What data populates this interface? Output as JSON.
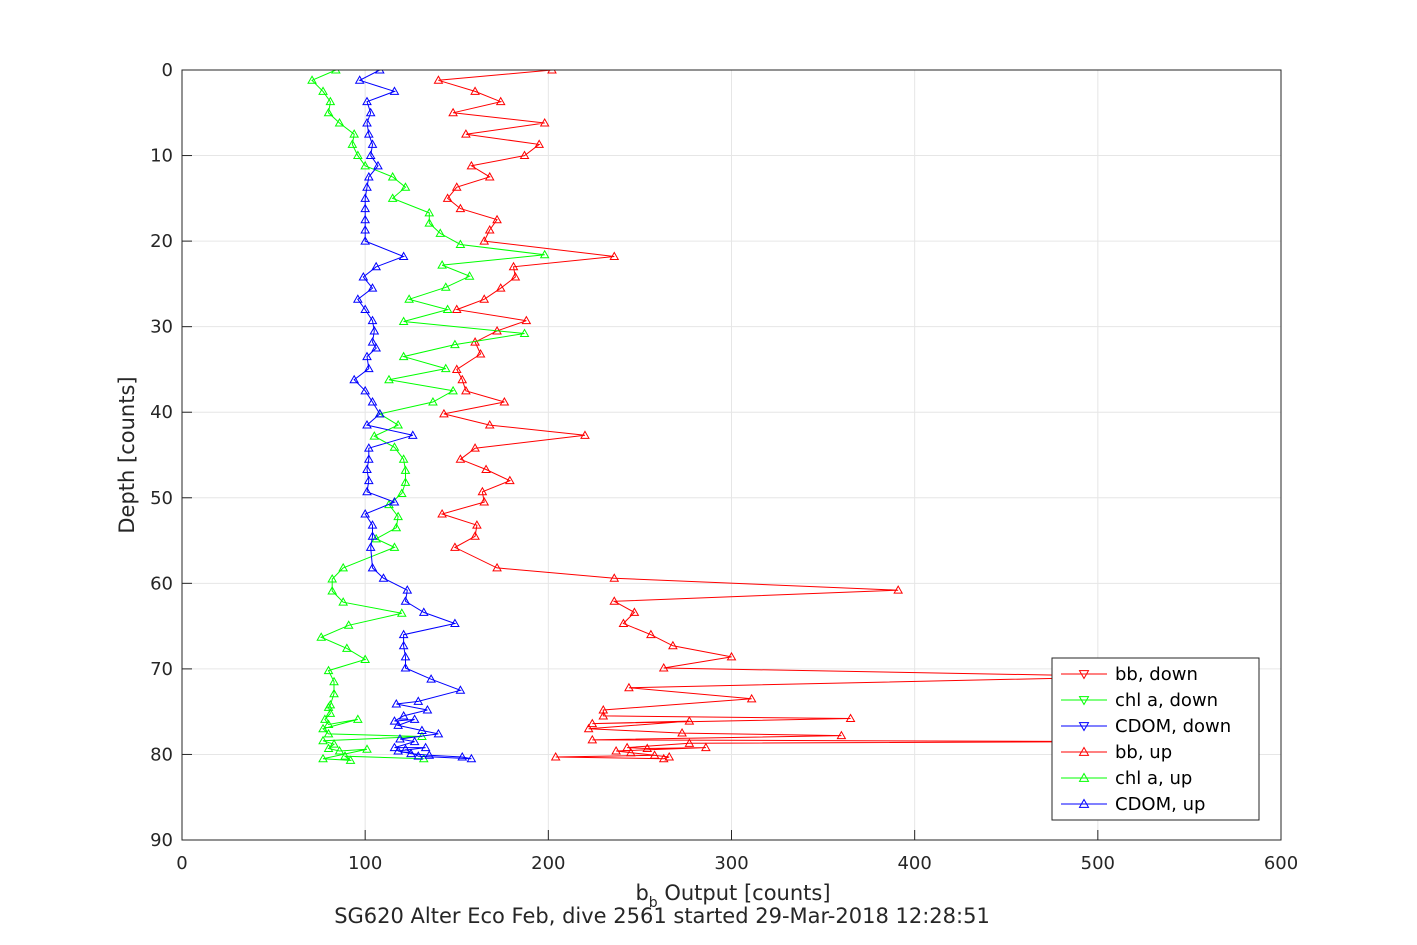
{
  "chart_data": {
    "type": "line",
    "title": "SG620 Alter Eco Feb, dive 2561 started 29-Mar-2018 12:28:51",
    "xlabel_main": "b",
    "xlabel_sub": "b",
    "xlabel_rest": " Output [counts]",
    "ylabel": "Depth [counts]",
    "xlim": [
      0,
      600
    ],
    "ylim": [
      90,
      0
    ],
    "y_reversed": true,
    "grid": true,
    "x_ticks": [
      "0",
      "100",
      "200",
      "300",
      "400",
      "500",
      "600"
    ],
    "x_tick_values": [
      0,
      100,
      200,
      300,
      400,
      500,
      600
    ],
    "y_ticks": [
      "0",
      "10",
      "20",
      "30",
      "40",
      "50",
      "60",
      "70",
      "80",
      "90"
    ],
    "y_tick_values": [
      0,
      10,
      20,
      30,
      40,
      50,
      60,
      70,
      80,
      90
    ],
    "legend_position": "bottom-right",
    "series": [
      {
        "name": "bb, down",
        "color": "#ff0000",
        "marker": "triangle-down",
        "points": []
      },
      {
        "name": "chl a, down",
        "color": "#00ff00",
        "marker": "triangle-down",
        "points": []
      },
      {
        "name": "CDOM, down",
        "color": "#0000ff",
        "marker": "triangle-down",
        "points": []
      },
      {
        "name": "bb, up",
        "color": "#ff0000",
        "marker": "triangle-up",
        "points": [
          [
            202,
            0
          ],
          [
            140,
            1.2
          ],
          [
            160,
            2.5
          ],
          [
            174,
            3.7
          ],
          [
            148,
            5
          ],
          [
            198,
            6.2
          ],
          [
            155,
            7.5
          ],
          [
            195,
            8.7
          ],
          [
            187,
            10
          ],
          [
            158,
            11.2
          ],
          [
            168,
            12.5
          ],
          [
            150,
            13.7
          ],
          [
            145,
            15
          ],
          [
            152,
            16.2
          ],
          [
            172,
            17.5
          ],
          [
            168,
            18.7
          ],
          [
            165,
            20
          ],
          [
            236,
            21.8
          ],
          [
            181,
            23
          ],
          [
            182,
            24.2
          ],
          [
            174,
            25.5
          ],
          [
            165,
            26.8
          ],
          [
            150,
            28
          ],
          [
            188,
            29.3
          ],
          [
            172,
            30.5
          ],
          [
            160,
            31.8
          ],
          [
            163,
            33.2
          ],
          [
            150,
            35
          ],
          [
            153,
            36.2
          ],
          [
            155,
            37.5
          ],
          [
            176,
            38.8
          ],
          [
            143,
            40.2
          ],
          [
            168,
            41.5
          ],
          [
            220,
            42.7
          ],
          [
            160,
            44.2
          ],
          [
            152,
            45.5
          ],
          [
            166,
            46.7
          ],
          [
            179,
            48
          ],
          [
            164,
            49.3
          ],
          [
            165,
            50.5
          ],
          [
            142,
            51.9
          ],
          [
            161,
            53.2
          ],
          [
            160,
            54.5
          ],
          [
            149,
            55.8
          ],
          [
            172,
            58.2
          ],
          [
            236,
            59.4
          ],
          [
            391,
            60.8
          ],
          [
            236,
            62.1
          ],
          [
            247,
            63.4
          ],
          [
            241,
            64.7
          ],
          [
            256,
            66
          ],
          [
            268,
            67.3
          ],
          [
            300,
            68.6
          ],
          [
            263,
            69.9
          ],
          [
            520,
            70.9
          ],
          [
            244,
            72.2
          ],
          [
            311,
            73.5
          ],
          [
            230,
            74.8
          ],
          [
            230,
            75.5
          ],
          [
            365,
            75.8
          ],
          [
            224,
            76.4
          ],
          [
            277,
            76.1
          ],
          [
            222,
            77
          ],
          [
            273,
            77.5
          ],
          [
            360,
            77.8
          ],
          [
            224,
            78.3
          ],
          [
            520,
            78.5
          ],
          [
            277,
            78.7
          ],
          [
            243,
            79.2
          ],
          [
            254,
            79.3
          ],
          [
            286,
            79.2
          ],
          [
            237,
            79.6
          ],
          [
            258,
            80.1
          ],
          [
            204,
            80.3
          ],
          [
            263,
            80.5
          ],
          [
            266,
            80.3
          ],
          [
            245,
            79.8
          ]
        ]
      },
      {
        "name": "chl a, up",
        "color": "#00ff00",
        "marker": "triangle-up",
        "points": [
          [
            84,
            0
          ],
          [
            71,
            1.2
          ],
          [
            77,
            2.5
          ],
          [
            81,
            3.7
          ],
          [
            80,
            5
          ],
          [
            86,
            6.2
          ],
          [
            94,
            7.5
          ],
          [
            93,
            8.7
          ],
          [
            96,
            10
          ],
          [
            100,
            11.2
          ],
          [
            115,
            12.5
          ],
          [
            122,
            13.7
          ],
          [
            115,
            15
          ],
          [
            135,
            16.7
          ],
          [
            135,
            17.9
          ],
          [
            141,
            19.1
          ],
          [
            152,
            20.4
          ],
          [
            198,
            21.6
          ],
          [
            142,
            22.8
          ],
          [
            157,
            24.1
          ],
          [
            144,
            25.4
          ],
          [
            124,
            26.8
          ],
          [
            145,
            28
          ],
          [
            121,
            29.4
          ],
          [
            187,
            30.8
          ],
          [
            149,
            32.1
          ],
          [
            121,
            33.5
          ],
          [
            144,
            34.9
          ],
          [
            113,
            36.2
          ],
          [
            148,
            37.5
          ],
          [
            137,
            38.8
          ],
          [
            108,
            40.2
          ],
          [
            118,
            41.5
          ],
          [
            105,
            42.8
          ],
          [
            116,
            44.1
          ],
          [
            121,
            45.5
          ],
          [
            122,
            46.8
          ],
          [
            122,
            48.2
          ],
          [
            120,
            49.5
          ],
          [
            113,
            50.8
          ],
          [
            118,
            52.2
          ],
          [
            117,
            53.5
          ],
          [
            106,
            54.8
          ],
          [
            116,
            55.8
          ],
          [
            88,
            58.2
          ],
          [
            82,
            59.5
          ],
          [
            82,
            60.9
          ],
          [
            88,
            62.2
          ],
          [
            120,
            63.5
          ],
          [
            91,
            64.9
          ],
          [
            76,
            66.3
          ],
          [
            90,
            67.6
          ],
          [
            100,
            68.9
          ],
          [
            80,
            70.2
          ],
          [
            83,
            71.5
          ],
          [
            83,
            72.9
          ],
          [
            81,
            74.2
          ],
          [
            80,
            74.5
          ],
          [
            81,
            75.2
          ],
          [
            78,
            75.9
          ],
          [
            80,
            76.5
          ],
          [
            96,
            75.9
          ],
          [
            77,
            77
          ],
          [
            80,
            77.6
          ],
          [
            131,
            77.9
          ],
          [
            77,
            78.4
          ],
          [
            83,
            78.8
          ],
          [
            80,
            79.3
          ],
          [
            86,
            79.6
          ],
          [
            101,
            79.4
          ],
          [
            77,
            80.5
          ],
          [
            92,
            80.7
          ],
          [
            89,
            80.2
          ],
          [
            132,
            80.5
          ]
        ]
      },
      {
        "name": "CDOM, up",
        "color": "#0000ff",
        "marker": "triangle-up",
        "points": [
          [
            108,
            0
          ],
          [
            97,
            1.2
          ],
          [
            116,
            2.5
          ],
          [
            101,
            3.7
          ],
          [
            103,
            5
          ],
          [
            101,
            6.2
          ],
          [
            102,
            7.5
          ],
          [
            104,
            8.7
          ],
          [
            103,
            10
          ],
          [
            107,
            11.2
          ],
          [
            102,
            12.5
          ],
          [
            101,
            13.7
          ],
          [
            100,
            15
          ],
          [
            100,
            16.2
          ],
          [
            100,
            17.5
          ],
          [
            100,
            18.7
          ],
          [
            100,
            20
          ],
          [
            121,
            21.8
          ],
          [
            106,
            23
          ],
          [
            99,
            24.2
          ],
          [
            104,
            25.5
          ],
          [
            96,
            26.8
          ],
          [
            100,
            28
          ],
          [
            104,
            29.3
          ],
          [
            105,
            30.5
          ],
          [
            104,
            31.8
          ],
          [
            106,
            32.5
          ],
          [
            101,
            33.5
          ],
          [
            102,
            34.9
          ],
          [
            94,
            36.2
          ],
          [
            100,
            37.5
          ],
          [
            104,
            38.8
          ],
          [
            108,
            40.2
          ],
          [
            101,
            41.5
          ],
          [
            126,
            42.7
          ],
          [
            102,
            44.2
          ],
          [
            102,
            45.5
          ],
          [
            101,
            46.7
          ],
          [
            102,
            48
          ],
          [
            101,
            49.3
          ],
          [
            116,
            50.5
          ],
          [
            100,
            51.9
          ],
          [
            104,
            53.2
          ],
          [
            104,
            54.5
          ],
          [
            103,
            55.8
          ],
          [
            104,
            58.2
          ],
          [
            110,
            59.4
          ],
          [
            123,
            60.8
          ],
          [
            122,
            62.1
          ],
          [
            132,
            63.4
          ],
          [
            149,
            64.7
          ],
          [
            121,
            66
          ],
          [
            121,
            67.3
          ],
          [
            122,
            68.6
          ],
          [
            122,
            69.9
          ],
          [
            136,
            71.2
          ],
          [
            152,
            72.5
          ],
          [
            129,
            73.8
          ],
          [
            117,
            74.1
          ],
          [
            134,
            74.8
          ],
          [
            121,
            75.5
          ],
          [
            116,
            76.1
          ],
          [
            127,
            75.9
          ],
          [
            118,
            76.6
          ],
          [
            131,
            77.2
          ],
          [
            140,
            77.6
          ],
          [
            119,
            78.2
          ],
          [
            127,
            78.5
          ],
          [
            116,
            79.2
          ],
          [
            133,
            79.2
          ],
          [
            118,
            79.6
          ],
          [
            125,
            79.9
          ],
          [
            135,
            80.1
          ],
          [
            153,
            80.3
          ],
          [
            158,
            80.5
          ],
          [
            129,
            80.2
          ],
          [
            122,
            79.4
          ]
        ]
      }
    ]
  }
}
